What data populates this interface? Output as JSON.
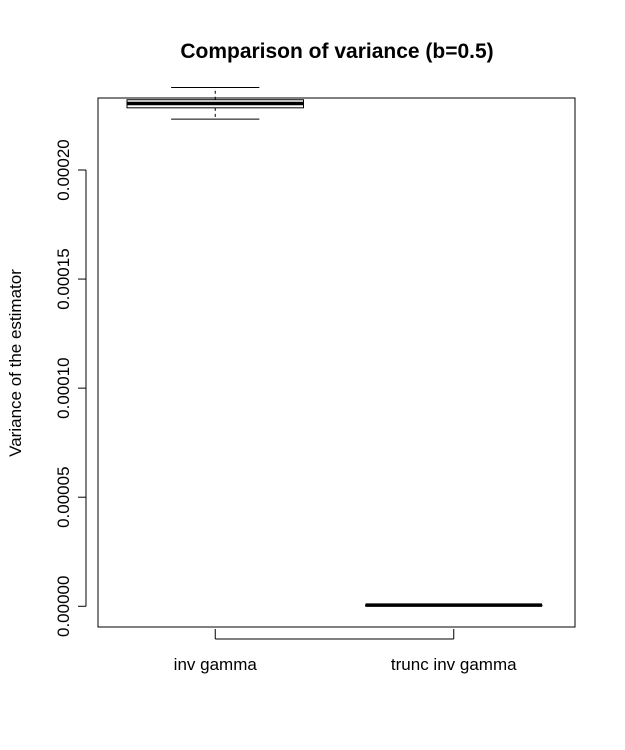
{
  "chart_data": {
    "type": "boxplot",
    "title": "Comparison of variance (b=0.5)",
    "xlabel": "",
    "ylabel": "Variance of the estimator",
    "ylim": [
      -9.5e-06,
      0.000233
    ],
    "yticks": [
      "0.00000",
      "0.00005",
      "0.00010",
      "0.00015",
      "0.00020"
    ],
    "ytick_values": [
      0,
      5e-05,
      0.0001,
      0.00015,
      0.0002
    ],
    "grid": false,
    "categories": [
      "inv gamma",
      "trunc inv gamma"
    ],
    "boxes": [
      {
        "name": "inv gamma",
        "min": 0.0002233,
        "q1": 0.0002285,
        "median": 0.0002305,
        "q3": 0.0002322,
        "max": 0.0002378
      },
      {
        "name": "trunc inv gamma",
        "min": 5e-07,
        "q1": 5e-07,
        "median": 5e-07,
        "q3": 5e-07,
        "max": 5e-07
      }
    ]
  }
}
